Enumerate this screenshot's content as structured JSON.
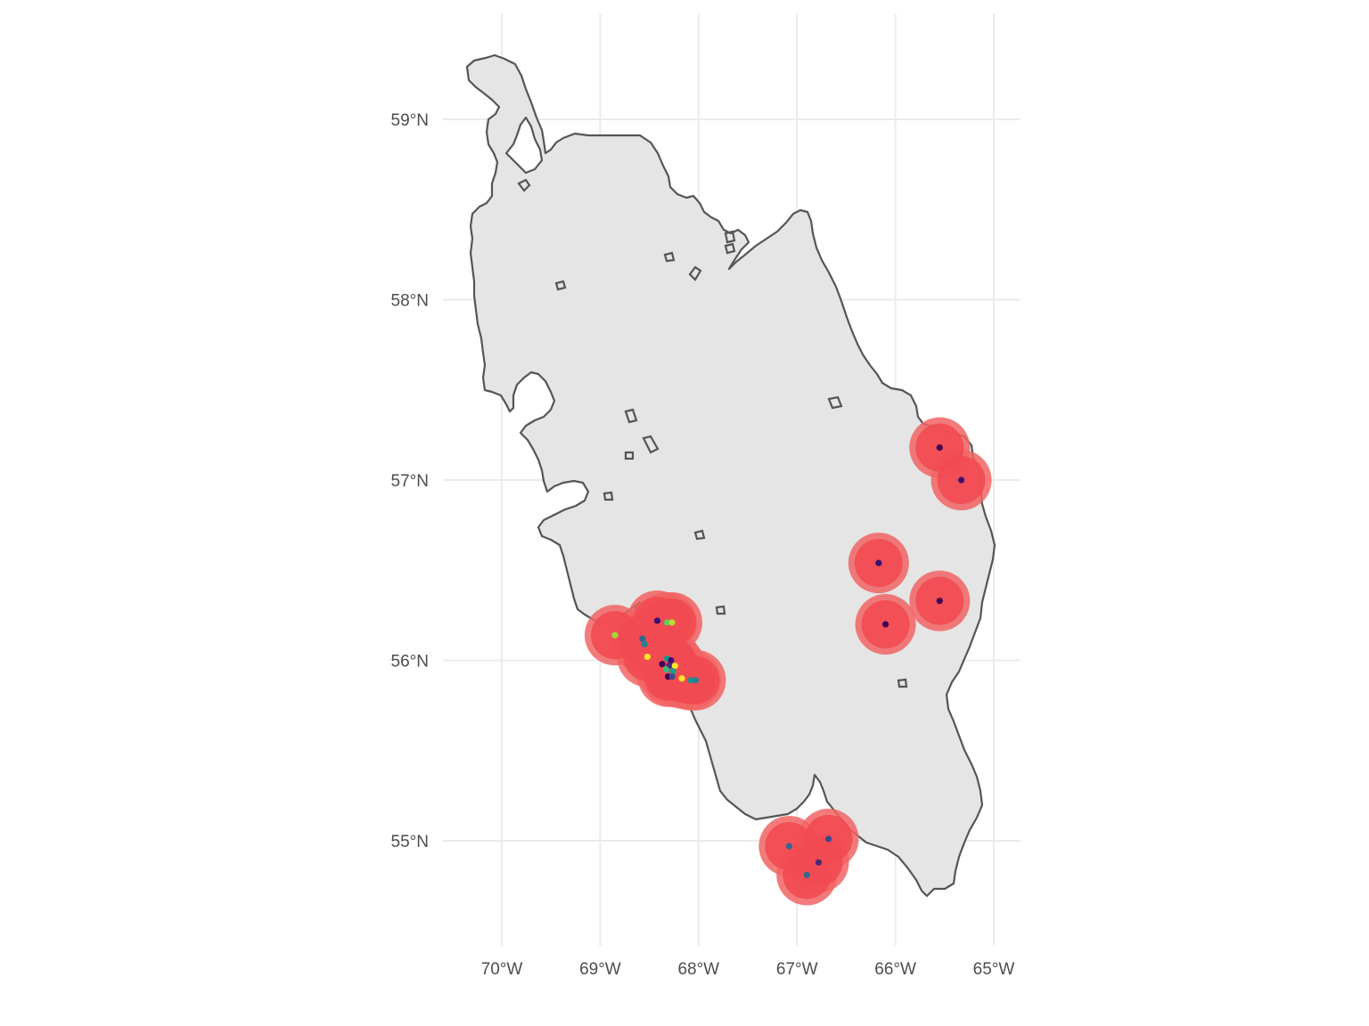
{
  "map": {
    "x_ticks": [
      "70°W",
      "69°W",
      "68°W",
      "67°W",
      "66°W",
      "65°W"
    ],
    "y_ticks": [
      "59°N",
      "58°N",
      "57°N",
      "56°N",
      "55°N"
    ],
    "lon_ticks": [
      -70,
      -69,
      -68,
      -67,
      -66,
      -65
    ],
    "lat_ticks": [
      59,
      58,
      57,
      56,
      55
    ],
    "colors": {
      "land_fill": "#e5e5e5",
      "land_border": "#555555",
      "buffer": "#f24a52",
      "grid": "#ebebeb"
    },
    "points": [
      {
        "lon": -65.55,
        "lat": 57.18,
        "color": "#440154"
      },
      {
        "lon": -65.33,
        "lat": 57.0,
        "color": "#3b0f70"
      },
      {
        "lon": -66.17,
        "lat": 56.54,
        "color": "#3b0f70"
      },
      {
        "lon": -65.55,
        "lat": 56.33,
        "color": "#440154"
      },
      {
        "lon": -66.1,
        "lat": 56.2,
        "color": "#440154"
      },
      {
        "lon": -68.42,
        "lat": 56.22,
        "color": "#3b0f70"
      },
      {
        "lon": -68.32,
        "lat": 56.21,
        "color": "#5ec962"
      },
      {
        "lon": -68.27,
        "lat": 56.21,
        "color": "#b5de2b"
      },
      {
        "lon": -68.85,
        "lat": 56.14,
        "color": "#a0da39"
      },
      {
        "lon": -68.57,
        "lat": 56.12,
        "color": "#31688e"
      },
      {
        "lon": -68.55,
        "lat": 56.09,
        "color": "#26828e"
      },
      {
        "lon": -68.52,
        "lat": 56.02,
        "color": "#fde725"
      },
      {
        "lon": -68.32,
        "lat": 56.01,
        "color": "#21918c"
      },
      {
        "lon": -68.28,
        "lat": 56.0,
        "color": "#3b0f70"
      },
      {
        "lon": -68.37,
        "lat": 55.98,
        "color": "#440154"
      },
      {
        "lon": -68.3,
        "lat": 55.97,
        "color": "#482878"
      },
      {
        "lon": -68.24,
        "lat": 55.97,
        "color": "#fde725"
      },
      {
        "lon": -68.33,
        "lat": 55.95,
        "color": "#35b779"
      },
      {
        "lon": -68.26,
        "lat": 55.94,
        "color": "#1f9e89"
      },
      {
        "lon": -68.31,
        "lat": 55.91,
        "color": "#440154"
      },
      {
        "lon": -68.27,
        "lat": 55.91,
        "color": "#3e4989"
      },
      {
        "lon": -68.17,
        "lat": 55.9,
        "color": "#fde725"
      },
      {
        "lon": -68.08,
        "lat": 55.89,
        "color": "#21918c"
      },
      {
        "lon": -68.03,
        "lat": 55.89,
        "color": "#26828e"
      },
      {
        "lon": -67.08,
        "lat": 54.97,
        "color": "#31688e"
      },
      {
        "lon": -66.68,
        "lat": 55.01,
        "color": "#3e4989"
      },
      {
        "lon": -66.78,
        "lat": 54.88,
        "color": "#482878"
      },
      {
        "lon": -66.9,
        "lat": 54.81,
        "color": "#31688e"
      }
    ]
  }
}
